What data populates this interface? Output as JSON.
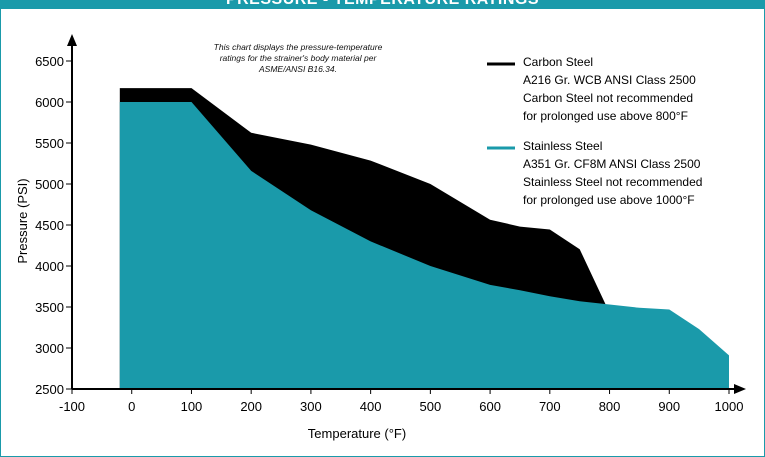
{
  "title": "PRESSURE - TEMPERATURE RATINGS",
  "chart_data": {
    "type": "area",
    "title": "PRESSURE - TEMPERATURE RATINGS",
    "xlabel": "Temperature (°F)",
    "ylabel": "Pressure (PSI)",
    "xlim": [
      -100,
      1000
    ],
    "ylim": [
      2500,
      6500
    ],
    "x_ticks": [
      "-100",
      "0",
      "100",
      "200",
      "300",
      "400",
      "500",
      "600",
      "700",
      "800",
      "900",
      "1000"
    ],
    "y_ticks": [
      "2500",
      "3000",
      "3500",
      "4000",
      "4500",
      "5000",
      "5500",
      "6000",
      "6500"
    ],
    "note_lines": [
      "This chart displays the pressure-temperature",
      "ratings for the strainer's body material per",
      "ASME/ANSI B16.34."
    ],
    "series": [
      {
        "name": "Carbon Steel",
        "legend_lines": [
          "Carbon Steel",
          "A216 Gr. WCB ANSI Class 2500",
          "Carbon Steel not recommended",
          "for prolonged use above 800°F"
        ],
        "color": "#000000",
        "x": [
          -20,
          100,
          200,
          300,
          400,
          500,
          600,
          650,
          700,
          750,
          800
        ],
        "y": [
          6170,
          6170,
          5625,
          5480,
          5285,
          5000,
          4565,
          4480,
          4445,
          4205,
          3430
        ]
      },
      {
        "name": "Stainless Steel",
        "legend_lines": [
          "Stainless Steel",
          "A351 Gr. CF8M ANSI Class 2500",
          "Stainless Steel not recommended",
          "for prolonged use above 1000°F"
        ],
        "color": "#1a9aaa",
        "x": [
          -20,
          100,
          200,
          300,
          400,
          500,
          600,
          650,
          700,
          750,
          800,
          850,
          900,
          950,
          1000
        ],
        "y": [
          6000,
          6000,
          5160,
          4680,
          4300,
          4000,
          3770,
          3705,
          3630,
          3570,
          3530,
          3490,
          3470,
          3230,
          2910
        ]
      }
    ]
  }
}
